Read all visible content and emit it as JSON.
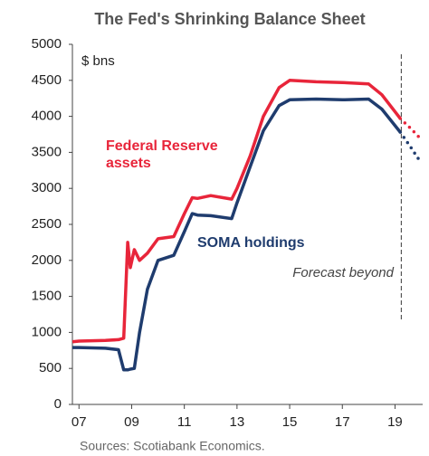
{
  "chart_data": {
    "type": "line",
    "title": "The Fed's Shrinking Balance Sheet",
    "y_unit_label": "$ bns",
    "source": "Sources: Scotiabank Economics.",
    "forecast_label": "Forecast beyond",
    "forecast_start": 2019.24,
    "x": [
      2006.75,
      2007,
      2008,
      2008.5,
      2008.7,
      2008.85,
      2008.95,
      2009.1,
      2009.3,
      2009.6,
      2010,
      2010.6,
      2011,
      2011.3,
      2011.5,
      2012,
      2012.8,
      2013,
      2013.5,
      2014,
      2014.6,
      2015,
      2016,
      2017,
      2018,
      2018.5,
      2019.2,
      2019.6,
      2020
    ],
    "series": [
      {
        "name": "Federal Reserve assets",
        "color": "#e8253a",
        "values": [
          870,
          880,
          890,
          900,
          920,
          2250,
          1900,
          2150,
          2000,
          2100,
          2300,
          2330,
          2650,
          2870,
          2860,
          2900,
          2850,
          3000,
          3450,
          4000,
          4400,
          4500,
          4480,
          4470,
          4450,
          4300,
          3970,
          null,
          null
        ],
        "forecast": [
          null,
          null,
          null,
          null,
          null,
          null,
          null,
          null,
          null,
          null,
          null,
          null,
          null,
          null,
          null,
          null,
          null,
          null,
          null,
          null,
          null,
          null,
          null,
          null,
          null,
          null,
          3970,
          3830,
          3680
        ]
      },
      {
        "name": "SOMA holdings",
        "color": "#1f3c6e",
        "values": [
          790,
          790,
          780,
          760,
          480,
          480,
          490,
          500,
          1000,
          1600,
          2000,
          2070,
          2400,
          2650,
          2630,
          2620,
          2580,
          2800,
          3300,
          3800,
          4150,
          4230,
          4240,
          4230,
          4240,
          4100,
          3780,
          null,
          null
        ],
        "forecast": [
          null,
          null,
          null,
          null,
          null,
          null,
          null,
          null,
          null,
          null,
          null,
          null,
          null,
          null,
          null,
          null,
          null,
          null,
          null,
          null,
          null,
          null,
          null,
          null,
          null,
          null,
          3780,
          3570,
          3350
        ]
      }
    ],
    "xlim": [
      2006.75,
      2020.05
    ],
    "xticks": [
      {
        "value": 2007,
        "label": "07"
      },
      {
        "value": 2009,
        "label": "09"
      },
      {
        "value": 2011,
        "label": "11"
      },
      {
        "value": 2013,
        "label": "13"
      },
      {
        "value": 2015,
        "label": "15"
      },
      {
        "value": 2017,
        "label": "17"
      },
      {
        "value": 2019,
        "label": "19"
      }
    ],
    "ylim": [
      0,
      5000
    ],
    "yticks": [
      0,
      500,
      1000,
      1500,
      2000,
      2500,
      3000,
      3500,
      4000,
      4500,
      5000
    ]
  }
}
